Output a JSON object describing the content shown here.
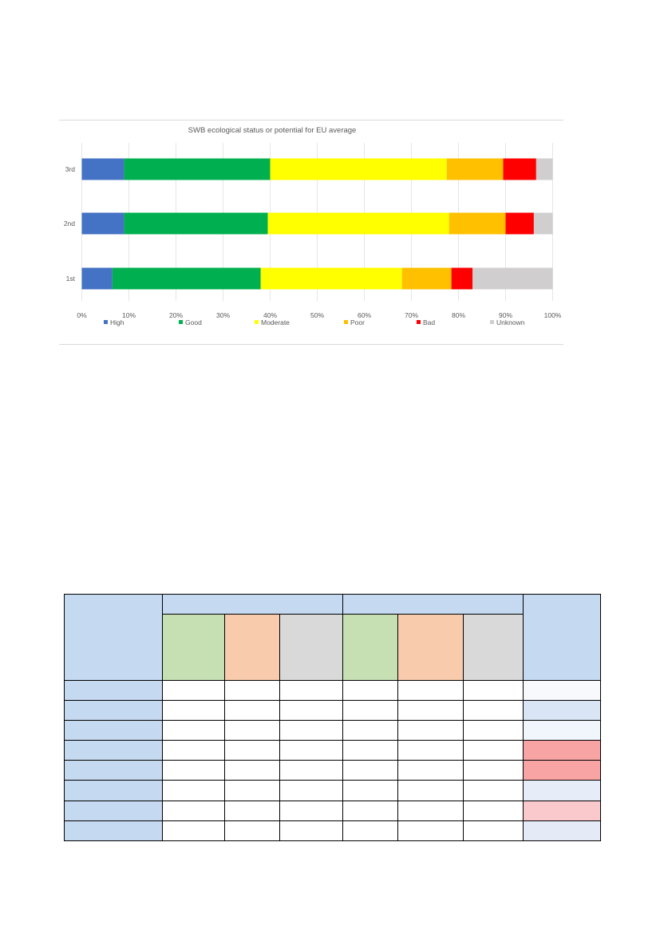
{
  "chart_data": {
    "type": "bar",
    "orientation": "horizontal",
    "stacked": true,
    "percent_stacked": true,
    "title": "SWB ecological status or potential for EU average",
    "categories": [
      "3rd",
      "2nd",
      "1st"
    ],
    "series": [
      {
        "name": "High",
        "color": "#4472c4",
        "values": [
          9,
          9,
          6.5
        ]
      },
      {
        "name": "Good",
        "color": "#00b050",
        "values": [
          31,
          30.5,
          31.5
        ]
      },
      {
        "name": "Moderate",
        "color": "#ffff00",
        "values": [
          37.5,
          38.5,
          30
        ]
      },
      {
        "name": "Poor",
        "color": "#ffc000",
        "values": [
          12,
          12,
          10.5
        ]
      },
      {
        "name": "Bad",
        "color": "#ff0000",
        "values": [
          7,
          6,
          4.5
        ]
      },
      {
        "name": "Unknown",
        "color": "#d0cece",
        "values": [
          3.5,
          4,
          17
        ]
      }
    ],
    "x_ticks": [
      "0%",
      "10%",
      "20%",
      "30%",
      "40%",
      "50%",
      "60%",
      "70%",
      "80%",
      "90%",
      "100%"
    ],
    "xlim": [
      0,
      100
    ],
    "grid": true,
    "legend": "bottom"
  },
  "table": {
    "header_color": "#c5d9f1",
    "subheader_colors": [
      "#c6e0b4",
      "#f8cbad",
      "#d9d9d9",
      "#c6e0b4",
      "#f8cbad",
      "#d9d9d9"
    ],
    "last_column_colors": [
      "#f8f9fd",
      "#d9e4f4",
      "#f1f5fc",
      "#f8a3a4",
      "#f8a3a4",
      "#e6edf8",
      "#fac9cb",
      "#e4eaf6"
    ],
    "row_count": 8
  }
}
